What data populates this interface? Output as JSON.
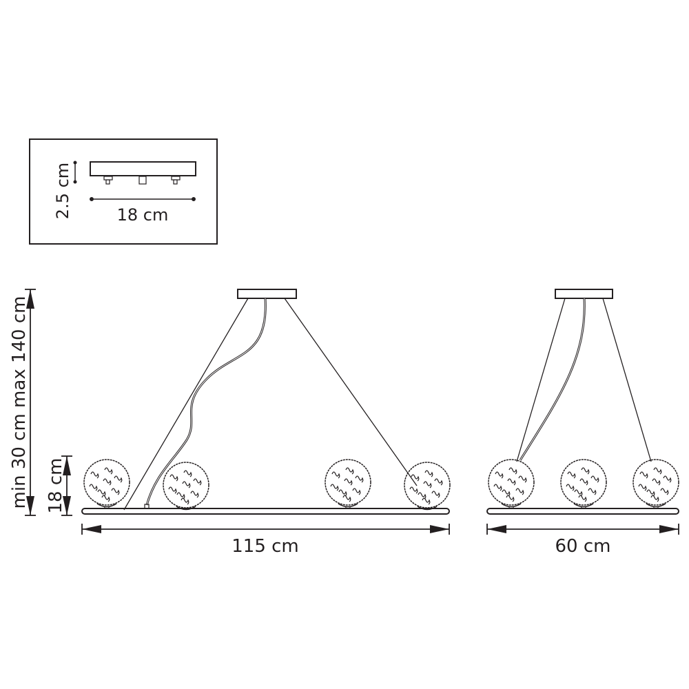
{
  "canopy_inset": {
    "height_label": "2.5 cm",
    "width_label": "18 cm"
  },
  "front_view": {
    "drop_label": "min 30 cm max 140 cm",
    "globe_height_label": "18 cm",
    "length_label": "115 cm"
  },
  "side_view": {
    "width_label": "60 cm"
  },
  "line_color": "#231f20"
}
